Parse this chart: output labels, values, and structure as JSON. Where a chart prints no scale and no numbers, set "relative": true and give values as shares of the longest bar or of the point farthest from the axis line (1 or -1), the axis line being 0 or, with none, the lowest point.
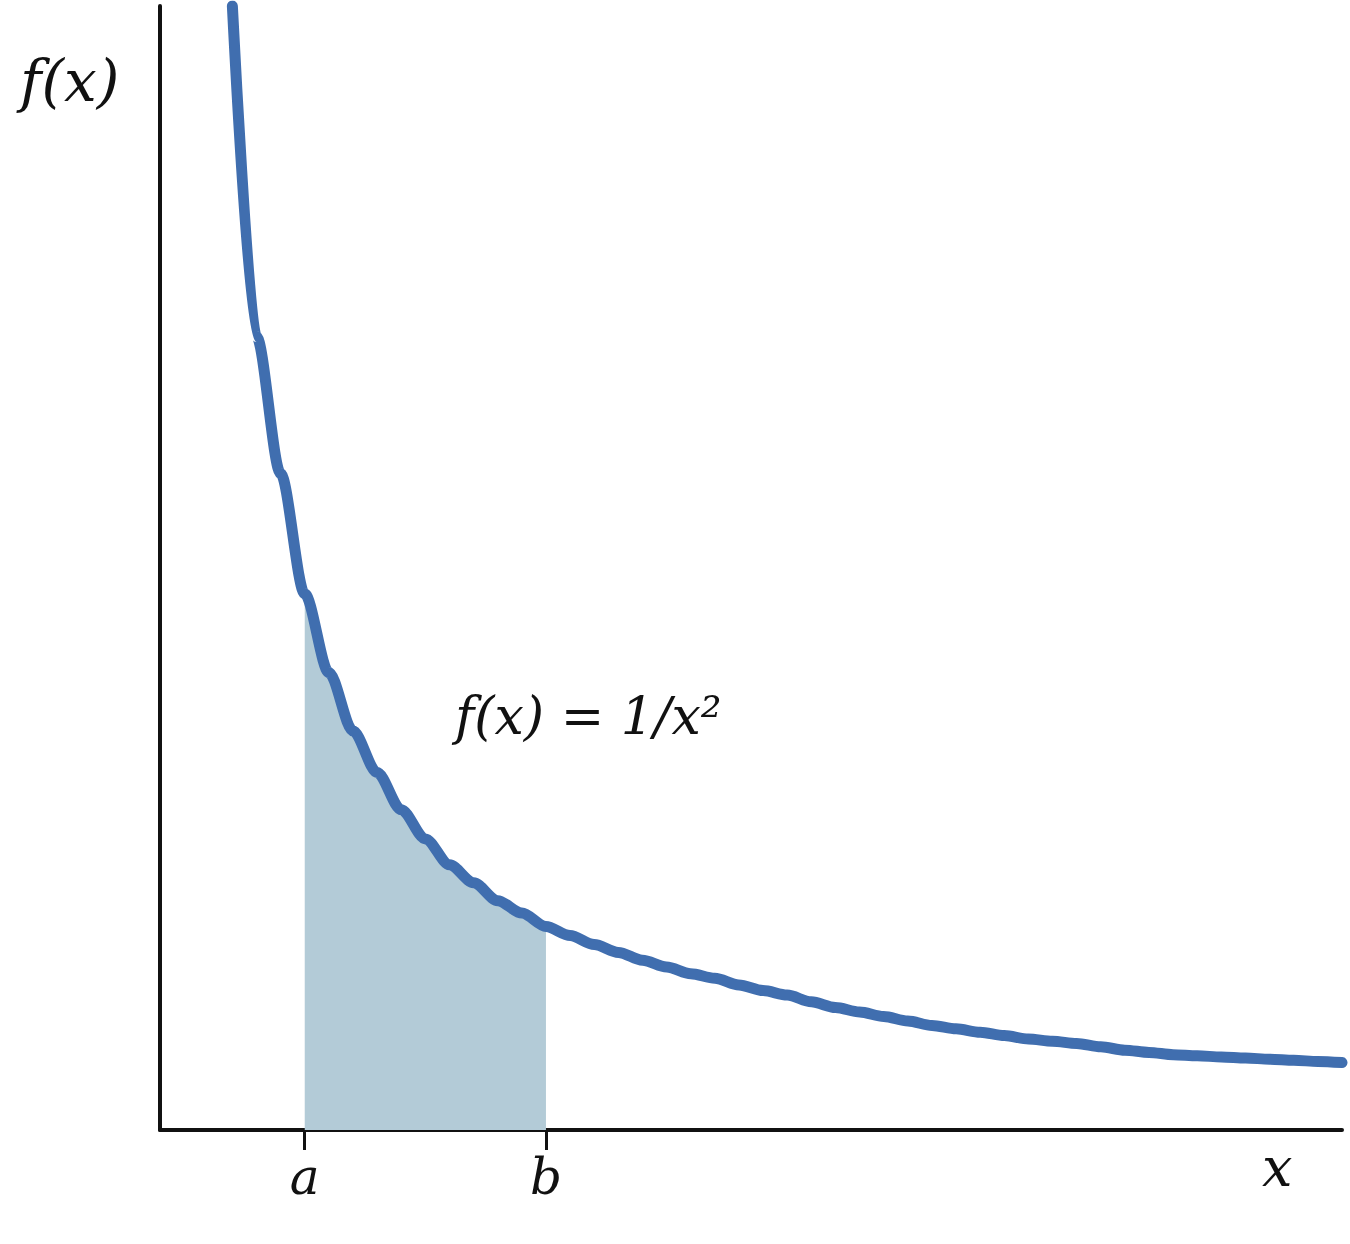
{
  "chart_data": {
    "type": "line",
    "relative": true,
    "xlabel": "x",
    "ylabel": "f(x)",
    "annotations": [
      "f(x) = 1/x²"
    ],
    "categories": [
      null,
      null,
      null,
      null,
      null,
      null,
      "a",
      null,
      null,
      null,
      null,
      null,
      null,
      null,
      null,
      null,
      "b",
      null,
      null,
      null,
      null,
      null,
      null,
      null,
      null,
      null,
      null,
      null,
      null,
      null,
      null,
      null,
      null,
      null,
      null,
      null,
      null,
      null,
      null,
      null,
      null,
      null,
      null,
      null,
      null,
      null,
      null,
      null,
      null,
      null
    ],
    "series": [
      {
        "type": "area",
        "color": "#b3cbd7",
        "values": [
          null,
          null,
          null,
          null,
          null,
          null,
          0.477,
          0.407,
          0.355,
          0.318,
          0.285,
          0.259,
          0.236,
          0.22,
          0.204,
          0.193,
          0.181,
          null,
          null,
          null,
          null,
          null,
          null,
          null,
          null,
          null,
          null,
          null,
          null,
          null,
          null,
          null,
          null,
          null,
          null,
          null,
          null,
          null,
          null,
          null,
          null,
          null,
          null,
          null,
          null,
          null,
          null,
          null,
          null,
          null
        ]
      },
      {
        "color": "#406eaf",
        "values": [
          null,
          null,
          null,
          1,
          0.706,
          0.584,
          0.477,
          0.407,
          0.355,
          0.318,
          0.285,
          0.259,
          0.236,
          0.22,
          0.204,
          0.193,
          0.181,
          0.173,
          0.165,
          0.158,
          0.151,
          0.145,
          0.139,
          0.135,
          0.129,
          0.124,
          0.12,
          0.114,
          0.109,
          0.105,
          0.101,
          0.097,
          0.093,
          0.09,
          0.087,
          0.084,
          0.081,
          0.079,
          0.077,
          0.074,
          0.071,
          0.069,
          0.067,
          0.066,
          0.065,
          0.064,
          0.063,
          0.062,
          0.061,
          0.06
        ]
      }
    ],
    "grid": false
  }
}
